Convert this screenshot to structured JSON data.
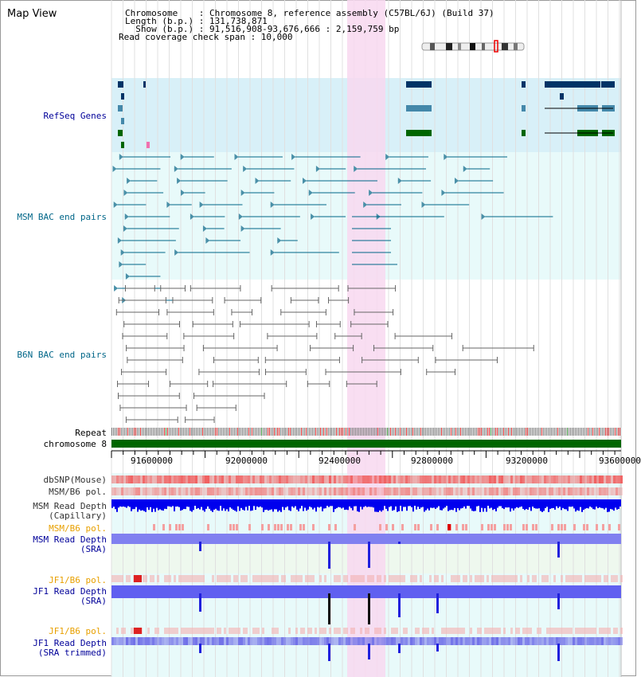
{
  "header": {
    "title": "Map View",
    "lines": [
      "Chromosome    : Chromosome 8, reference assembly (C57BL/6J) (Build 37)",
      "Length (b.p.) : 131,738,871",
      "  Show (b.p.) : 91,516,908-93,676,666 : 2,159,759 bp",
      "Read coverage check span : 10,000"
    ]
  },
  "tracks": {
    "refseq": "RefSeq Genes",
    "msm_bac": "MSM BAC end pairs",
    "b6n_bac": "B6N BAC end pairs",
    "repeat": "Repeat",
    "chromosome": "chromosome 8",
    "dbsnp": "dbSNP(Mouse)",
    "msm_b6_pol_1": "MSM/B6 pol.",
    "msm_read_depth_cap_1": "MSM Read Depth",
    "msm_read_depth_cap_2": "(Capillary)",
    "msm_b6_pol_2": "MSM/B6 pol.",
    "msm_read_depth_sra_1": "MSM Read Depth",
    "msm_read_depth_sra_2": "(SRA)",
    "jf1_b6_pol_1": "JF1/B6 pol.",
    "jf1_read_depth_sra_1": "JF1 Read Depth",
    "jf1_read_depth_sra_2": "(SRA)",
    "jf1_b6_pol_2": "JF1/B6 pol.",
    "jf1_read_depth_trim_1": "JF1 Read Depth",
    "jf1_read_depth_trim_2": "(SRA trimmed)"
  },
  "axis": {
    "ticks": [
      "91600000",
      "92000000",
      "92400000",
      "92800000",
      "93200000",
      "93600000"
    ]
  },
  "colors": {
    "refseq_bg": "#d8f0f8",
    "track_bg": "#e8fafa",
    "highlight": "#f8d8f0",
    "chromosome_bar": "#006600",
    "dbsnp": "#f06060",
    "msm_depth": "#0000ee",
    "sra_depth": "#7070f0",
    "pol_light": "#f8c8c8",
    "label_blue": "#000099",
    "label_teal": "#006688",
    "label_orange": "#e8a000"
  }
}
